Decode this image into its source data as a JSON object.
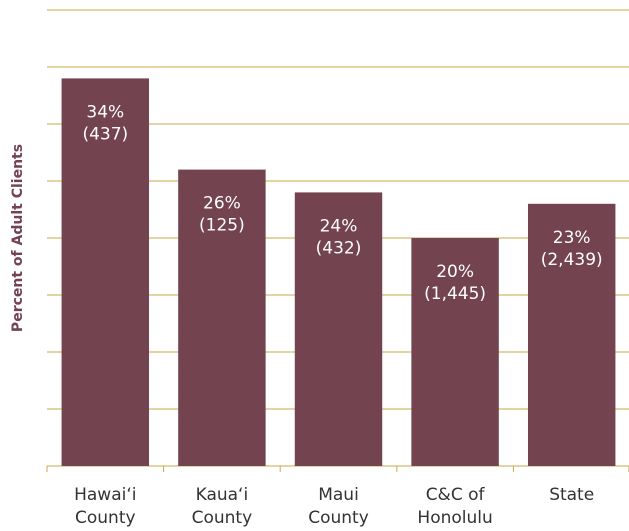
{
  "chart_data": {
    "type": "bar",
    "y_axis_label": "Percent of Adult Clients",
    "categories": [
      "Hawai‘i County",
      "Kaua‘i County",
      "Maui County",
      "C&C of Honolulu",
      "State"
    ],
    "values": [
      34,
      26,
      24,
      20,
      23
    ],
    "value_labels": [
      "34%",
      "26%",
      "24%",
      "20%",
      "23%"
    ],
    "count_labels": [
      "(437)",
      "(125)",
      "(432)",
      "(1,445)",
      "(2,439)"
    ],
    "color": "#734350",
    "ylim": [
      0,
      40
    ],
    "yticks": [
      0,
      5,
      10,
      15,
      20,
      25,
      30,
      35,
      40
    ],
    "grid": true
  }
}
